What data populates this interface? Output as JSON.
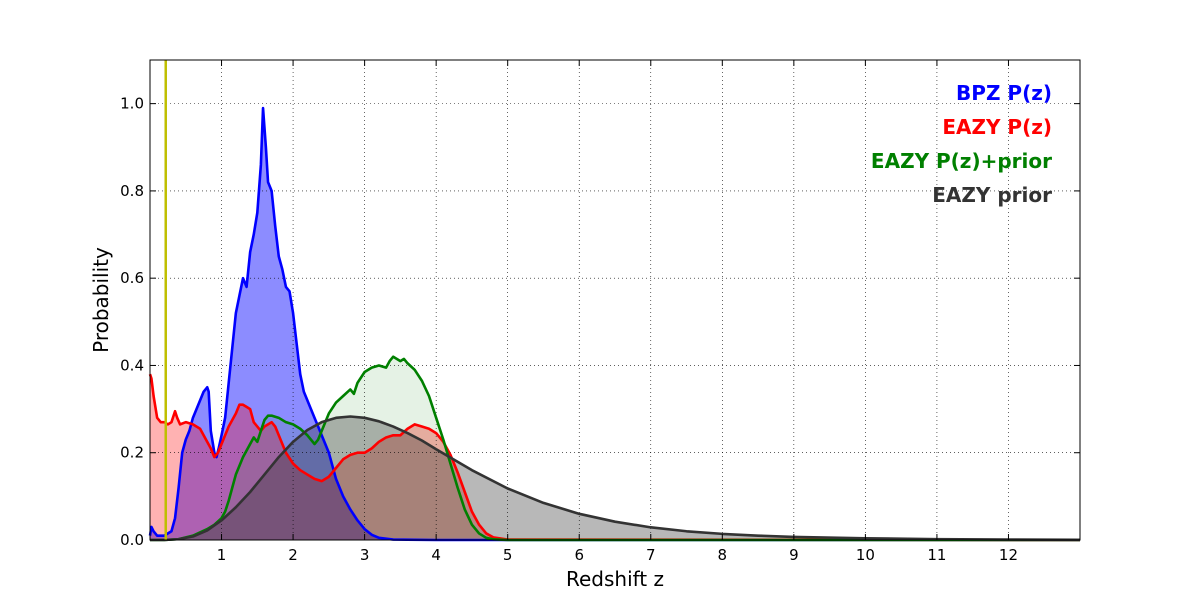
{
  "chart_data": {
    "type": "area",
    "xlabel": "Redshift z",
    "ylabel": "Probability",
    "xlim": [
      0,
      13
    ],
    "ylim": [
      0,
      1.1
    ],
    "x_ticks": [
      1,
      2,
      3,
      4,
      5,
      6,
      7,
      8,
      9,
      10,
      11,
      12
    ],
    "y_ticks": [
      0.0,
      0.2,
      0.4,
      0.6,
      0.8,
      1.0
    ],
    "y_tick_labels": [
      "0.0",
      "0.2",
      "0.4",
      "0.6",
      "0.8",
      "1.0"
    ],
    "grid": true,
    "legend_position": "top-right",
    "vertical_line": {
      "x": 0.22,
      "color": "#bfbf00"
    },
    "series": [
      {
        "name": "BPZ P(z)",
        "color": "#0000ff",
        "fill": "#0000ff",
        "fill_opacity": 0.45,
        "points": [
          [
            0,
            0.01
          ],
          [
            0.02,
            0.03
          ],
          [
            0.05,
            0.02
          ],
          [
            0.1,
            0.01
          ],
          [
            0.2,
            0.01
          ],
          [
            0.3,
            0.02
          ],
          [
            0.35,
            0.05
          ],
          [
            0.4,
            0.12
          ],
          [
            0.45,
            0.2
          ],
          [
            0.5,
            0.23
          ],
          [
            0.55,
            0.25
          ],
          [
            0.6,
            0.28
          ],
          [
            0.65,
            0.3
          ],
          [
            0.7,
            0.32
          ],
          [
            0.75,
            0.34
          ],
          [
            0.8,
            0.35
          ],
          [
            0.82,
            0.34
          ],
          [
            0.85,
            0.25
          ],
          [
            0.88,
            0.22
          ],
          [
            0.9,
            0.2
          ],
          [
            0.93,
            0.19
          ],
          [
            0.96,
            0.21
          ],
          [
            1.0,
            0.24
          ],
          [
            1.05,
            0.28
          ],
          [
            1.1,
            0.36
          ],
          [
            1.15,
            0.44
          ],
          [
            1.2,
            0.52
          ],
          [
            1.25,
            0.56
          ],
          [
            1.3,
            0.6
          ],
          [
            1.35,
            0.58
          ],
          [
            1.4,
            0.66
          ],
          [
            1.45,
            0.7
          ],
          [
            1.5,
            0.75
          ],
          [
            1.55,
            0.86
          ],
          [
            1.58,
            0.99
          ],
          [
            1.62,
            0.9
          ],
          [
            1.65,
            0.82
          ],
          [
            1.7,
            0.8
          ],
          [
            1.75,
            0.72
          ],
          [
            1.8,
            0.65
          ],
          [
            1.85,
            0.62
          ],
          [
            1.9,
            0.58
          ],
          [
            1.95,
            0.57
          ],
          [
            2.0,
            0.52
          ],
          [
            2.05,
            0.45
          ],
          [
            2.1,
            0.38
          ],
          [
            2.15,
            0.34
          ],
          [
            2.2,
            0.32
          ],
          [
            2.25,
            0.3
          ],
          [
            2.3,
            0.28
          ],
          [
            2.35,
            0.26
          ],
          [
            2.4,
            0.24
          ],
          [
            2.45,
            0.22
          ],
          [
            2.5,
            0.2
          ],
          [
            2.55,
            0.17
          ],
          [
            2.6,
            0.14
          ],
          [
            2.7,
            0.1
          ],
          [
            2.8,
            0.07
          ],
          [
            2.9,
            0.045
          ],
          [
            3.0,
            0.025
          ],
          [
            3.1,
            0.012
          ],
          [
            3.2,
            0.005
          ],
          [
            3.4,
            0.001
          ],
          [
            4,
            0
          ],
          [
            13,
            0
          ]
        ]
      },
      {
        "name": "EAZY P(z)",
        "color": "#ff0000",
        "fill": "#ff0000",
        "fill_opacity": 0.3,
        "points": [
          [
            0,
            0.38
          ],
          [
            0.02,
            0.37
          ],
          [
            0.05,
            0.33
          ],
          [
            0.1,
            0.28
          ],
          [
            0.15,
            0.27
          ],
          [
            0.2,
            0.27
          ],
          [
            0.25,
            0.265
          ],
          [
            0.3,
            0.27
          ],
          [
            0.35,
            0.295
          ],
          [
            0.38,
            0.28
          ],
          [
            0.42,
            0.265
          ],
          [
            0.5,
            0.27
          ],
          [
            0.6,
            0.265
          ],
          [
            0.7,
            0.255
          ],
          [
            0.8,
            0.225
          ],
          [
            0.85,
            0.21
          ],
          [
            0.9,
            0.19
          ],
          [
            0.95,
            0.2
          ],
          [
            1.0,
            0.22
          ],
          [
            1.1,
            0.26
          ],
          [
            1.2,
            0.29
          ],
          [
            1.25,
            0.31
          ],
          [
            1.3,
            0.31
          ],
          [
            1.35,
            0.305
          ],
          [
            1.4,
            0.3
          ],
          [
            1.45,
            0.27
          ],
          [
            1.5,
            0.26
          ],
          [
            1.55,
            0.25
          ],
          [
            1.6,
            0.26
          ],
          [
            1.65,
            0.265
          ],
          [
            1.7,
            0.27
          ],
          [
            1.75,
            0.26
          ],
          [
            1.8,
            0.24
          ],
          [
            1.9,
            0.2
          ],
          [
            2.0,
            0.175
          ],
          [
            2.1,
            0.16
          ],
          [
            2.2,
            0.15
          ],
          [
            2.3,
            0.14
          ],
          [
            2.4,
            0.135
          ],
          [
            2.5,
            0.145
          ],
          [
            2.6,
            0.165
          ],
          [
            2.7,
            0.185
          ],
          [
            2.8,
            0.195
          ],
          [
            2.9,
            0.2
          ],
          [
            3.0,
            0.2
          ],
          [
            3.1,
            0.21
          ],
          [
            3.2,
            0.225
          ],
          [
            3.3,
            0.235
          ],
          [
            3.4,
            0.24
          ],
          [
            3.5,
            0.24
          ],
          [
            3.6,
            0.255
          ],
          [
            3.7,
            0.265
          ],
          [
            3.8,
            0.26
          ],
          [
            3.9,
            0.255
          ],
          [
            4.0,
            0.245
          ],
          [
            4.1,
            0.225
          ],
          [
            4.2,
            0.195
          ],
          [
            4.3,
            0.155
          ],
          [
            4.4,
            0.11
          ],
          [
            4.5,
            0.065
          ],
          [
            4.6,
            0.035
          ],
          [
            4.7,
            0.015
          ],
          [
            4.8,
            0.006
          ],
          [
            5.0,
            0.001
          ],
          [
            13,
            0
          ]
        ]
      },
      {
        "name": "EAZY P(z)+prior",
        "color": "#008000",
        "fill": "#008000",
        "fill_opacity": 0.1,
        "points": [
          [
            0,
            0
          ],
          [
            0.2,
            0
          ],
          [
            0.4,
            0.002
          ],
          [
            0.6,
            0.01
          ],
          [
            0.8,
            0.025
          ],
          [
            0.9,
            0.035
          ],
          [
            1.0,
            0.05
          ],
          [
            1.05,
            0.065
          ],
          [
            1.1,
            0.09
          ],
          [
            1.15,
            0.12
          ],
          [
            1.2,
            0.15
          ],
          [
            1.3,
            0.19
          ],
          [
            1.4,
            0.22
          ],
          [
            1.45,
            0.235
          ],
          [
            1.5,
            0.225
          ],
          [
            1.55,
            0.25
          ],
          [
            1.6,
            0.275
          ],
          [
            1.65,
            0.285
          ],
          [
            1.7,
            0.285
          ],
          [
            1.8,
            0.28
          ],
          [
            1.9,
            0.27
          ],
          [
            2.0,
            0.265
          ],
          [
            2.1,
            0.255
          ],
          [
            2.2,
            0.24
          ],
          [
            2.3,
            0.22
          ],
          [
            2.35,
            0.23
          ],
          [
            2.4,
            0.25
          ],
          [
            2.5,
            0.29
          ],
          [
            2.6,
            0.315
          ],
          [
            2.7,
            0.33
          ],
          [
            2.8,
            0.345
          ],
          [
            2.85,
            0.335
          ],
          [
            2.9,
            0.36
          ],
          [
            3.0,
            0.385
          ],
          [
            3.1,
            0.395
          ],
          [
            3.2,
            0.4
          ],
          [
            3.3,
            0.395
          ],
          [
            3.35,
            0.41
          ],
          [
            3.4,
            0.42
          ],
          [
            3.5,
            0.41
          ],
          [
            3.55,
            0.415
          ],
          [
            3.6,
            0.405
          ],
          [
            3.7,
            0.39
          ],
          [
            3.8,
            0.365
          ],
          [
            3.9,
            0.33
          ],
          [
            4.0,
            0.28
          ],
          [
            4.1,
            0.23
          ],
          [
            4.2,
            0.175
          ],
          [
            4.3,
            0.12
          ],
          [
            4.4,
            0.07
          ],
          [
            4.5,
            0.035
          ],
          [
            4.6,
            0.015
          ],
          [
            4.7,
            0.005
          ],
          [
            4.8,
            0.0015
          ],
          [
            5.0,
            0
          ],
          [
            13,
            0
          ]
        ]
      },
      {
        "name": "EAZY prior",
        "color": "#333333",
        "fill": "#333333",
        "fill_opacity": 0.35,
        "points": [
          [
            0,
            0
          ],
          [
            0.2,
            0.0
          ],
          [
            0.4,
            0.002
          ],
          [
            0.6,
            0.008
          ],
          [
            0.8,
            0.022
          ],
          [
            1.0,
            0.045
          ],
          [
            1.2,
            0.075
          ],
          [
            1.4,
            0.11
          ],
          [
            1.6,
            0.15
          ],
          [
            1.8,
            0.19
          ],
          [
            2.0,
            0.225
          ],
          [
            2.2,
            0.252
          ],
          [
            2.4,
            0.27
          ],
          [
            2.6,
            0.28
          ],
          [
            2.8,
            0.283
          ],
          [
            3.0,
            0.28
          ],
          [
            3.2,
            0.272
          ],
          [
            3.4,
            0.26
          ],
          [
            3.6,
            0.245
          ],
          [
            3.8,
            0.228
          ],
          [
            4.0,
            0.208
          ],
          [
            4.5,
            0.16
          ],
          [
            5.0,
            0.118
          ],
          [
            5.5,
            0.085
          ],
          [
            6.0,
            0.06
          ],
          [
            6.5,
            0.042
          ],
          [
            7.0,
            0.029
          ],
          [
            7.5,
            0.02
          ],
          [
            8.0,
            0.014
          ],
          [
            8.5,
            0.01
          ],
          [
            9.0,
            0.007
          ],
          [
            10.0,
            0.004
          ],
          [
            11.0,
            0.002
          ],
          [
            12.0,
            0.001
          ],
          [
            13.0,
            0.0005
          ]
        ]
      }
    ]
  }
}
